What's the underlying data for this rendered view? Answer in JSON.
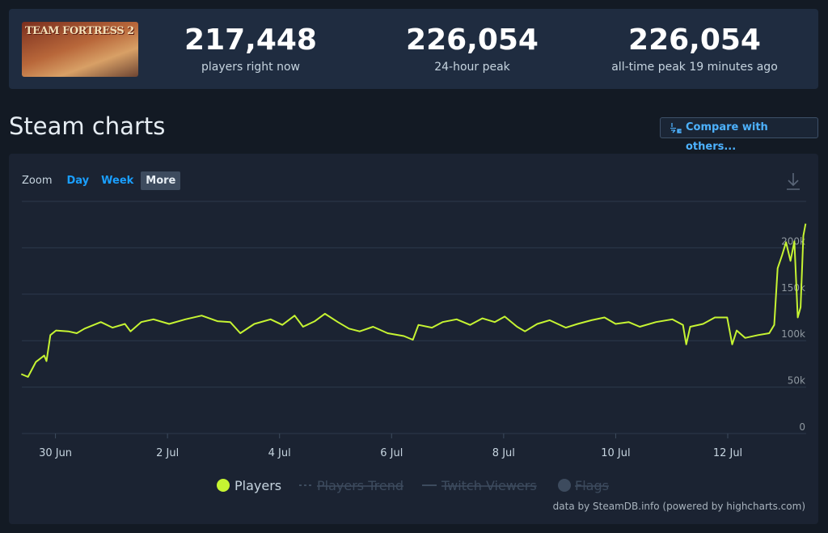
{
  "header": {
    "game_logo": "TEAM FORTRESS 2",
    "stats": [
      {
        "value": "217,448",
        "label": "players right now"
      },
      {
        "value": "226,054",
        "label": "24-hour peak"
      },
      {
        "value": "226,054",
        "label": "all-time peak 19 minutes ago"
      }
    ]
  },
  "section_title": "Steam charts",
  "compare_button": "Compare with others...",
  "zoom": {
    "label": "Zoom",
    "options": [
      "Day",
      "Week",
      "More"
    ],
    "active": 2
  },
  "legend_hidden": [
    "Players Trend",
    "Twitch Viewers",
    "Flags"
  ],
  "credits": "data by SteamDB.info (powered by highcharts.com)",
  "chart_data": {
    "type": "line",
    "x": [
      -0.61,
      -0.49,
      -0.35,
      -0.2,
      -0.16,
      -0.09,
      0.01,
      0.23,
      0.38,
      0.52,
      0.81,
      1.02,
      1.24,
      1.34,
      1.53,
      1.75,
      2.03,
      2.32,
      2.61,
      2.89,
      3.12,
      3.3,
      3.55,
      3.84,
      4.05,
      4.27,
      4.42,
      4.63,
      4.81,
      5.04,
      5.24,
      5.43,
      5.67,
      5.93,
      6.22,
      6.38,
      6.48,
      6.72,
      6.91,
      7.16,
      7.4,
      7.62,
      7.84,
      8.02,
      8.24,
      8.38,
      8.6,
      8.82,
      9.11,
      9.32,
      9.57,
      9.8,
      10.0,
      10.23,
      10.43,
      10.72,
      11.01,
      11.2,
      11.26,
      11.33,
      11.56,
      11.77,
      11.99,
      12.08,
      12.16,
      12.31,
      12.54,
      12.74,
      12.83,
      12.89,
      12.97,
      13.04,
      13.12,
      13.19,
      13.25,
      13.3,
      13.35,
      13.39
    ],
    "series": [
      {
        "name": "Players",
        "color": "#c6f432",
        "values": [
          64000,
          61000,
          77000,
          84000,
          78000,
          106000,
          111000,
          110000,
          108000,
          113000,
          120000,
          114000,
          118000,
          110000,
          120000,
          123000,
          118000,
          123000,
          127000,
          121000,
          120000,
          108000,
          118000,
          123000,
          117000,
          127000,
          115000,
          121000,
          129000,
          120000,
          113000,
          110000,
          115000,
          108000,
          105000,
          101000,
          117000,
          114000,
          120000,
          123000,
          117000,
          124000,
          120000,
          126000,
          115000,
          110000,
          118000,
          122000,
          114000,
          118000,
          122000,
          125000,
          118000,
          120000,
          115000,
          120000,
          123000,
          117000,
          96000,
          115000,
          118000,
          125000,
          125000,
          96000,
          111000,
          103000,
          106000,
          108000,
          117000,
          178000,
          192000,
          206000,
          186000,
          207000,
          125000,
          136000,
          213000,
          226000
        ]
      }
    ],
    "xlim": [
      -0.6,
      13.4
    ],
    "xticks": [
      {
        "value": 0,
        "label": "30 Jun"
      },
      {
        "value": 2,
        "label": "2 Jul"
      },
      {
        "value": 4,
        "label": "4 Jul"
      },
      {
        "value": 6,
        "label": "6 Jul"
      },
      {
        "value": 8,
        "label": "8 Jul"
      },
      {
        "value": 10,
        "label": "10 Jul"
      },
      {
        "value": 12,
        "label": "12 Jul"
      }
    ],
    "ylim": [
      0,
      250000
    ],
    "yticks": [
      0,
      {
        "value": 50000,
        "label": "50k"
      },
      {
        "value": 100000,
        "label": "100k"
      },
      {
        "value": 150000,
        "label": "150k"
      },
      {
        "value": 200000,
        "label": "200k"
      }
    ],
    "grid": true
  }
}
